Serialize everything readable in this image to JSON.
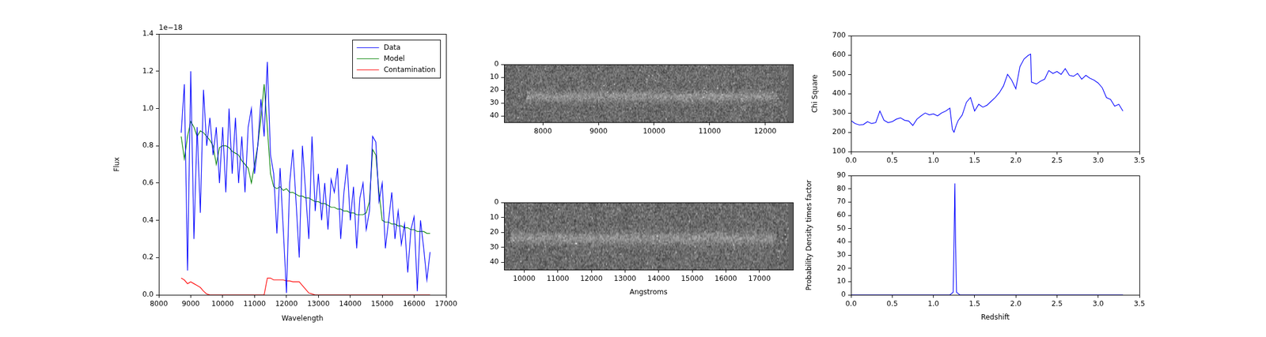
{
  "chart_data": [
    {
      "type": "line",
      "x_label": "Wavelength",
      "y_label": "Flux",
      "annotations": [
        "1e−18"
      ],
      "legend": "upper right",
      "grid": false,
      "xlim": [
        8000,
        17000
      ],
      "xticks": [
        8000,
        9000,
        10000,
        11000,
        12000,
        13000,
        14000,
        15000,
        16000,
        17000
      ],
      "ylim": [
        0,
        1.4
      ],
      "yticks": [
        {
          "value": 0,
          "label": "0.0"
        },
        0.2,
        0.4,
        0.6,
        0.8,
        {
          "value": 1,
          "label": "1.0"
        },
        1.2,
        1.4
      ],
      "x": [
        8700,
        8800,
        8900,
        9000,
        9100,
        9200,
        9300,
        9400,
        9500,
        9600,
        9700,
        9800,
        9900,
        10000,
        10100,
        10200,
        10300,
        10400,
        10500,
        10600,
        10700,
        10800,
        10900,
        11000,
        11100,
        11200,
        11300,
        11400,
        11500,
        11600,
        11700,
        11800,
        11900,
        12000,
        12100,
        12200,
        12300,
        12400,
        12500,
        12600,
        12700,
        12800,
        12900,
        13000,
        13100,
        13200,
        13300,
        13400,
        13500,
        13600,
        13700,
        13800,
        13900,
        14000,
        14100,
        14200,
        14300,
        14400,
        14500,
        14600,
        14700,
        14800,
        14900,
        15000,
        15100,
        15200,
        15300,
        15400,
        15500,
        15600,
        15700,
        15800,
        15900,
        16000,
        16100,
        16200,
        16300,
        16400,
        16500
      ],
      "series": [
        {
          "name": "Data",
          "color": "#0000ff",
          "values": [
            0.87,
            1.13,
            0.13,
            1.2,
            0.3,
            0.9,
            0.44,
            1.1,
            0.8,
            0.95,
            0.75,
            0.9,
            0.6,
            0.9,
            0.55,
            1.0,
            0.65,
            0.95,
            0.6,
            0.85,
            0.55,
            0.9,
            1.0,
            0.65,
            0.8,
            1.05,
            0.85,
            1.25,
            0.75,
            0.65,
            0.33,
            0.68,
            0.35,
            0.01,
            0.6,
            0.78,
            0.5,
            0.2,
            0.8,
            0.55,
            0.3,
            0.85,
            0.45,
            0.65,
            0.4,
            0.6,
            0.35,
            0.62,
            0.55,
            0.68,
            0.3,
            0.55,
            0.7,
            0.4,
            0.58,
            0.25,
            0.52,
            0.6,
            0.35,
            0.45,
            0.85,
            0.82,
            0.5,
            0.6,
            0.25,
            0.4,
            0.55,
            0.3,
            0.45,
            0.27,
            0.38,
            0.12,
            0.35,
            0.42,
            0.02,
            0.4,
            0.25,
            0.08,
            0.23
          ]
        },
        {
          "name": "Model",
          "color": "#008000",
          "values": [
            0.85,
            0.73,
            0.85,
            0.93,
            0.9,
            0.85,
            0.88,
            0.87,
            0.85,
            0.83,
            0.8,
            0.7,
            0.79,
            0.8,
            0.8,
            0.79,
            0.77,
            0.76,
            0.75,
            0.72,
            0.7,
            0.68,
            0.6,
            0.7,
            0.8,
            0.95,
            1.13,
            0.9,
            0.65,
            0.58,
            0.57,
            0.58,
            0.56,
            0.57,
            0.55,
            0.55,
            0.54,
            0.53,
            0.53,
            0.52,
            0.52,
            0.51,
            0.5,
            0.5,
            0.49,
            0.49,
            0.48,
            0.47,
            0.47,
            0.46,
            0.46,
            0.45,
            0.45,
            0.44,
            0.44,
            0.43,
            0.43,
            0.43,
            0.44,
            0.5,
            0.78,
            0.75,
            0.55,
            0.4,
            0.39,
            0.39,
            0.38,
            0.38,
            0.37,
            0.37,
            0.36,
            0.36,
            0.35,
            0.35,
            0.34,
            0.34,
            0.34,
            0.33,
            0.33
          ]
        },
        {
          "name": "Contamination",
          "color": "#ff0000",
          "values": [
            0.09,
            0.08,
            0.06,
            0.07,
            0.06,
            0.05,
            0.04,
            0.02,
            0.005,
            0,
            0,
            0,
            0,
            0,
            0,
            0,
            0,
            0,
            0,
            0,
            0,
            0,
            0,
            0,
            0,
            0,
            0,
            0.09,
            0.09,
            0.08,
            0.08,
            0.08,
            0.08,
            0.075,
            0.075,
            0.07,
            0.07,
            0.07,
            0.05,
            0.03,
            0.01,
            0.005,
            0,
            0,
            0,
            0,
            0,
            0,
            0,
            0,
            0,
            0,
            0,
            0,
            0,
            0,
            0,
            0,
            0,
            0,
            0,
            0,
            0,
            0,
            0,
            0,
            0,
            0,
            0,
            0,
            0,
            0,
            0,
            0,
            0,
            0,
            0,
            0,
            0
          ]
        }
      ]
    },
    {
      "type": "image",
      "grid": false,
      "xlim": [
        7300,
        12500
      ],
      "xticks": [
        8000,
        9000,
        10000,
        11000,
        12000
      ],
      "ylim": [
        0,
        45
      ],
      "yticks": [
        0,
        10,
        20,
        30,
        40
      ],
      "trace_row": 25,
      "trace_xlim": [
        7700,
        12200
      ]
    },
    {
      "type": "image",
      "x_label": "Angstroms",
      "grid": false,
      "xlim": [
        9400,
        18000
      ],
      "xticks": [
        10000,
        11000,
        12000,
        13000,
        14000,
        15000,
        16000,
        17000
      ],
      "ylim": [
        0,
        45
      ],
      "yticks": [
        0,
        10,
        20,
        30,
        40
      ],
      "trace_row": 24,
      "trace_xlim": [
        9600,
        17500
      ]
    },
    {
      "type": "line",
      "y_label": "Chi Square",
      "grid": false,
      "xlim": [
        0,
        3.5
      ],
      "xticks": [
        {
          "value": 0,
          "label": "0.0"
        },
        0.5,
        {
          "value": 1,
          "label": "1.0"
        },
        1.5,
        {
          "value": 2,
          "label": "2.0"
        },
        2.5,
        {
          "value": 3,
          "label": "3.0"
        },
        3.5
      ],
      "ylim": [
        100,
        700
      ],
      "yticks": [
        100,
        200,
        300,
        400,
        500,
        600,
        700
      ],
      "x": [
        0,
        0.05,
        0.1,
        0.15,
        0.2,
        0.25,
        0.3,
        0.35,
        0.4,
        0.45,
        0.5,
        0.55,
        0.6,
        0.65,
        0.7,
        0.75,
        0.8,
        0.85,
        0.9,
        0.95,
        1.0,
        1.05,
        1.1,
        1.15,
        1.2,
        1.23,
        1.25,
        1.28,
        1.3,
        1.35,
        1.4,
        1.45,
        1.5,
        1.55,
        1.6,
        1.65,
        1.7,
        1.75,
        1.8,
        1.85,
        1.9,
        1.95,
        2.0,
        2.05,
        2.1,
        2.15,
        2.18,
        2.19,
        2.25,
        2.3,
        2.35,
        2.4,
        2.45,
        2.5,
        2.55,
        2.6,
        2.65,
        2.7,
        2.75,
        2.8,
        2.85,
        2.9,
        2.95,
        3.0,
        3.05,
        3.1,
        3.15,
        3.2,
        3.25,
        3.3
      ],
      "series": [
        {
          "color": "#0000ff",
          "values": [
            260,
            245,
            238,
            240,
            255,
            245,
            250,
            310,
            262,
            250,
            255,
            268,
            275,
            262,
            258,
            235,
            268,
            285,
            300,
            290,
            295,
            285,
            300,
            310,
            325,
            215,
            200,
            240,
            260,
            290,
            355,
            380,
            310,
            345,
            330,
            340,
            360,
            380,
            405,
            440,
            500,
            470,
            425,
            540,
            580,
            598,
            605,
            460,
            450,
            465,
            475,
            520,
            505,
            515,
            500,
            530,
            495,
            490,
            505,
            475,
            495,
            480,
            470,
            455,
            430,
            380,
            370,
            335,
            345,
            310
          ]
        }
      ]
    },
    {
      "type": "line",
      "x_label": "Redshift",
      "y_label": "Probability Density times factor",
      "grid": false,
      "xlim": [
        0,
        3.5
      ],
      "xticks": [
        {
          "value": 0,
          "label": "0.0"
        },
        0.5,
        {
          "value": 1,
          "label": "1.0"
        },
        1.5,
        {
          "value": 2,
          "label": "2.0"
        },
        2.5,
        {
          "value": 3,
          "label": "3.0"
        },
        3.5
      ],
      "ylim": [
        0,
        90
      ],
      "yticks": [
        0,
        10,
        20,
        30,
        40,
        50,
        60,
        70,
        80,
        90
      ],
      "x": [
        0,
        1.2,
        1.24,
        1.25,
        1.26,
        1.27,
        1.28,
        1.32,
        3.3
      ],
      "series": [
        {
          "color": "#0000ff",
          "values": [
            0,
            0,
            2,
            40,
            84,
            35,
            2,
            0,
            0
          ]
        }
      ]
    }
  ]
}
